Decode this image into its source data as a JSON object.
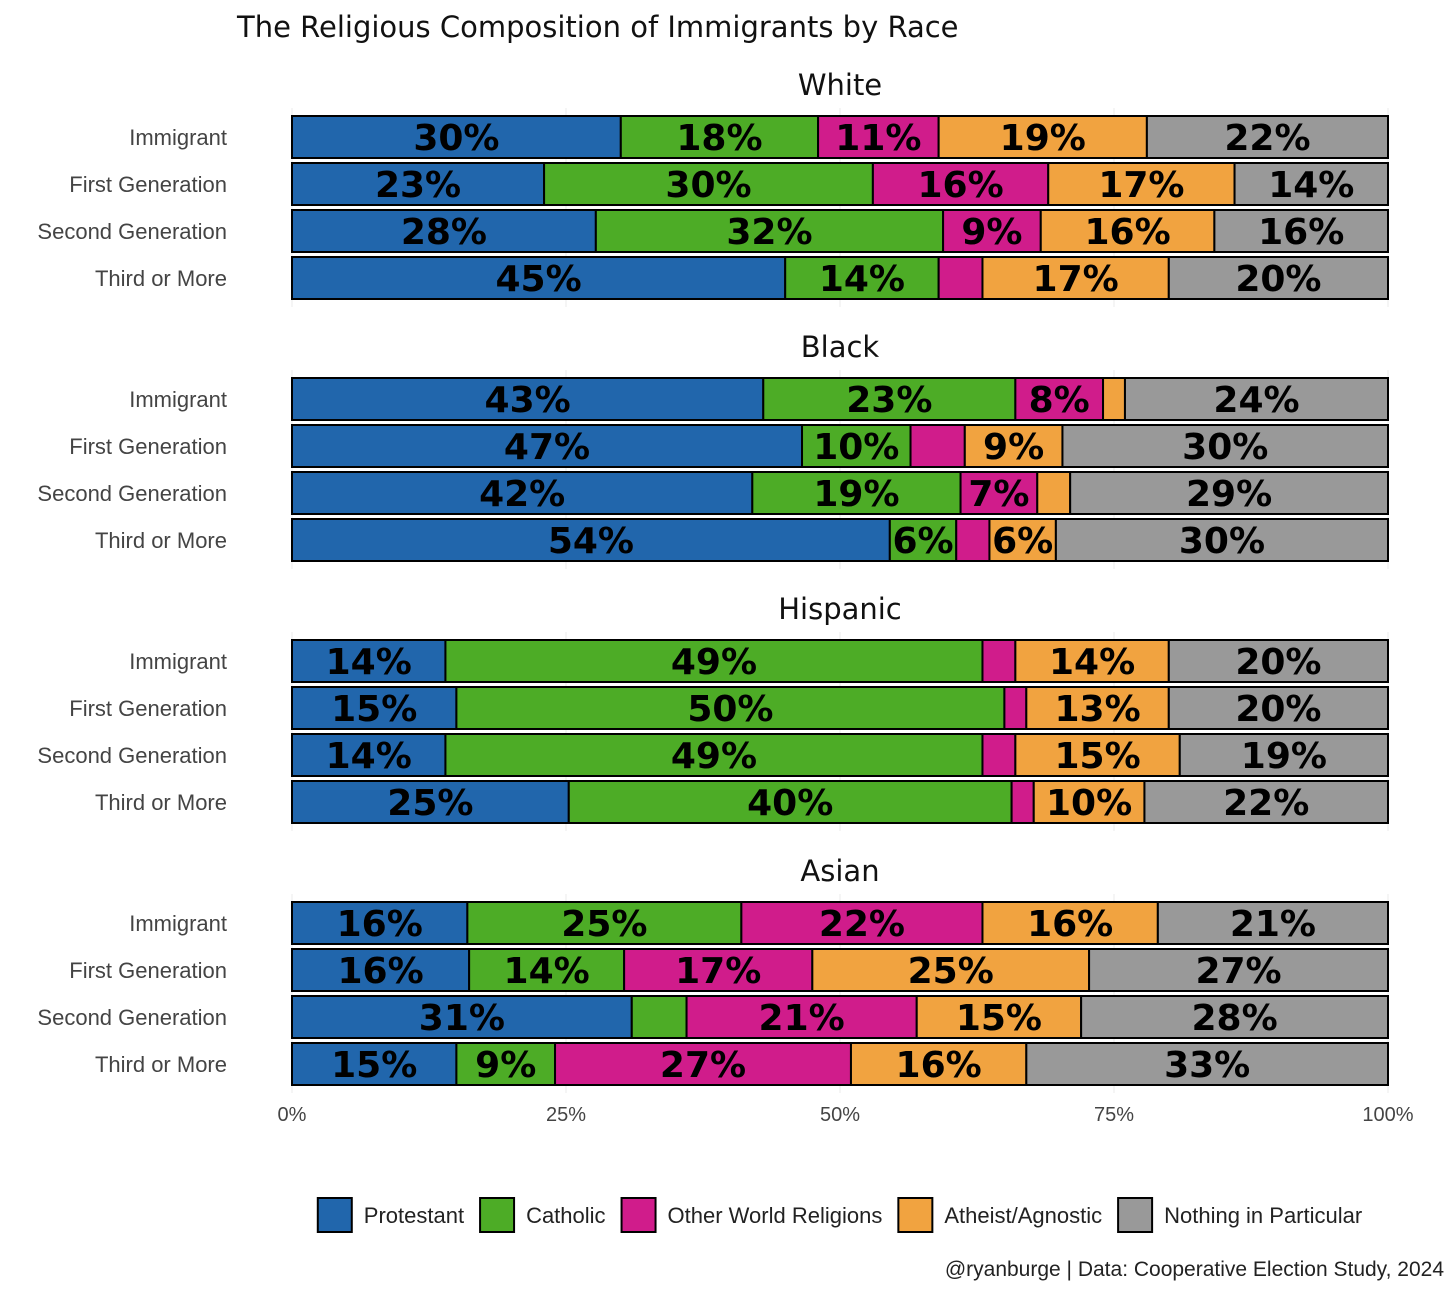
{
  "chart_data": {
    "type": "bar",
    "orientation": "horizontal",
    "stacked": true,
    "percent": true,
    "title": "The Religious Composition of Immigrants by Race",
    "xlabel": "",
    "ylabel": "",
    "xlim": [
      0,
      100
    ],
    "x_ticks": [
      "0%",
      "25%",
      "50%",
      "75%",
      "100%"
    ],
    "grid": true,
    "legend_position": "bottom",
    "caption": "@ryanburge | Data: Cooperative Election Study, 2024",
    "categories": [
      "Immigrant",
      "First Generation",
      "Second Generation",
      "Third or More"
    ],
    "series": [
      {
        "name": "Protestant",
        "color": "#2166ac"
      },
      {
        "name": "Catholic",
        "color": "#4dac26"
      },
      {
        "name": "Other World Religions",
        "color": "#d01c8b"
      },
      {
        "name": "Atheist/Agnostic",
        "color": "#f1a340"
      },
      {
        "name": "Nothing in Particular",
        "color": "#999999"
      }
    ],
    "facets": [
      {
        "name": "White",
        "rows": [
          {
            "category": "Immigrant",
            "values": [
              30,
              18,
              11,
              19,
              22
            ]
          },
          {
            "category": "First Generation",
            "values": [
              23,
              30,
              16,
              17,
              14
            ]
          },
          {
            "category": "Second Generation",
            "values": [
              28,
              32,
              9,
              16,
              16
            ]
          },
          {
            "category": "Third or More",
            "values": [
              45,
              14,
              4,
              17,
              20
            ]
          }
        ]
      },
      {
        "name": "Black",
        "rows": [
          {
            "category": "Immigrant",
            "values": [
              43,
              23,
              8,
              2,
              24
            ]
          },
          {
            "category": "First Generation",
            "values": [
              47,
              10,
              5,
              9,
              30
            ]
          },
          {
            "category": "Second Generation",
            "values": [
              42,
              19,
              7,
              3,
              29
            ]
          },
          {
            "category": "Third or More",
            "values": [
              54,
              6,
              3,
              6,
              30
            ]
          }
        ]
      },
      {
        "name": "Hispanic",
        "rows": [
          {
            "category": "Immigrant",
            "values": [
              14,
              49,
              3,
              14,
              20
            ]
          },
          {
            "category": "First Generation",
            "values": [
              15,
              50,
              2,
              13,
              20
            ]
          },
          {
            "category": "Second Generation",
            "values": [
              14,
              49,
              3,
              15,
              19
            ]
          },
          {
            "category": "Third or More",
            "values": [
              25,
              40,
              2,
              10,
              22
            ]
          }
        ]
      },
      {
        "name": "Asian",
        "rows": [
          {
            "category": "Immigrant",
            "values": [
              16,
              25,
              22,
              16,
              21
            ]
          },
          {
            "category": "First Generation",
            "values": [
              16,
              14,
              17,
              25,
              27
            ]
          },
          {
            "category": "Second Generation",
            "values": [
              31,
              5,
              21,
              15,
              28
            ]
          },
          {
            "category": "Third or More",
            "values": [
              15,
              9,
              27,
              16,
              33
            ]
          }
        ]
      }
    ],
    "label_threshold": 6
  }
}
